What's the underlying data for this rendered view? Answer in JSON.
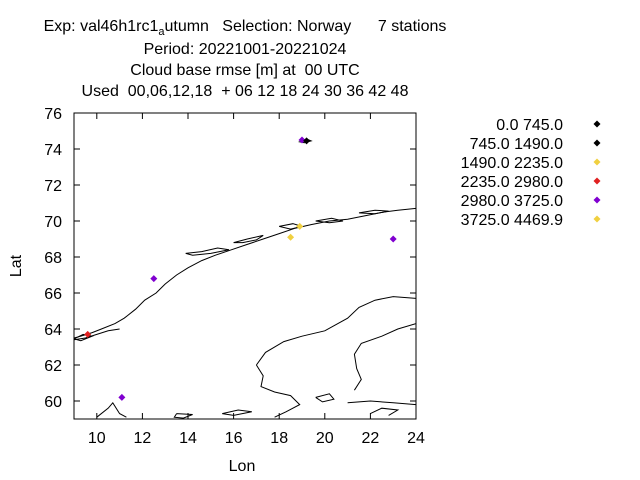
{
  "header": {
    "line1_a": "Exp: val46h1rc1",
    "line1_sub": "a",
    "line1_b": "utumn   Selection: Norway      7 stations",
    "line2": "Period: 20221001-20221024",
    "line3": "Cloud base rmse [m] at  00 UTC",
    "line4": "Used  00,06,12,18  + 06 12 18 24 30 36 42 48"
  },
  "chart_data": {
    "type": "scatter",
    "title": "Cloud base rmse [m] at  00 UTC",
    "xlabel": "Lon",
    "ylabel": "Lat",
    "xlim": [
      9,
      24
    ],
    "ylim": [
      59,
      76
    ],
    "xticks": [
      "10",
      "12",
      "14",
      "16",
      "18",
      "20",
      "22",
      "24"
    ],
    "yticks": [
      "60",
      "62",
      "64",
      "66",
      "68",
      "70",
      "72",
      "74",
      "76"
    ],
    "legend_position": "right",
    "legend": [
      {
        "label": "0.0 745.0",
        "color": "#000000"
      },
      {
        "label": "745.0 1490.0",
        "color": "#000000"
      },
      {
        "label": "1490.0 2235.0",
        "color": "#f0d040"
      },
      {
        "label": "2235.0 2980.0",
        "color": "#e02020"
      },
      {
        "label": "2980.0 3725.0",
        "color": "#8000d0"
      },
      {
        "label": "3725.0 4469.9",
        "color": "#f0d040"
      }
    ],
    "points": [
      {
        "lon": 19.0,
        "lat": 74.5,
        "color": "#8000d0"
      },
      {
        "lon": 19.2,
        "lat": 74.45,
        "color": "#000000"
      },
      {
        "lon": 18.9,
        "lat": 69.7,
        "color": "#f0d040"
      },
      {
        "lon": 18.5,
        "lat": 69.1,
        "color": "#f0d040"
      },
      {
        "lon": 23.0,
        "lat": 69.0,
        "color": "#8000d0"
      },
      {
        "lon": 12.5,
        "lat": 66.8,
        "color": "#8000d0"
      },
      {
        "lon": 9.6,
        "lat": 63.7,
        "color": "#e02020"
      },
      {
        "lon": 11.1,
        "lat": 60.2,
        "color": "#8000d0"
      }
    ]
  }
}
